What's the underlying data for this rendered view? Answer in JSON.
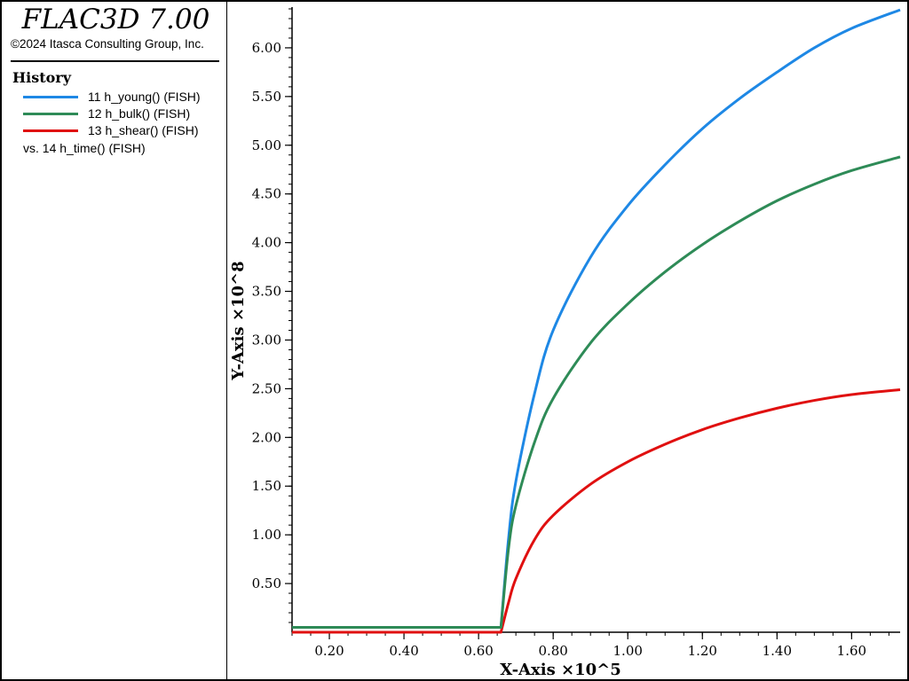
{
  "app": {
    "title": "FLAC3D 7.00",
    "copyright": "©2024 Itasca Consulting Group, Inc."
  },
  "legend": {
    "heading": "History",
    "entries": [
      {
        "label": "11 h_young() (FISH)",
        "color": "#1e88e5"
      },
      {
        "label": "12 h_bulk() (FISH)",
        "color": "#2e8b57"
      },
      {
        "label": "13 h_shear() (FISH)",
        "color": "#e01010"
      }
    ],
    "vs_label": "vs. 14 h_time() (FISH)"
  },
  "chart_data": {
    "type": "line",
    "xlabel": "X-Axis ×10^5",
    "ylabel": "Y-Axis ×10^8",
    "xlim": [
      0.1,
      1.73
    ],
    "ylim": [
      0.0,
      6.4
    ],
    "x_ticks": [
      0.2,
      0.4,
      0.6,
      0.8,
      1.0,
      1.2,
      1.4,
      1.6
    ],
    "x_tick_labels": [
      "0.20",
      "0.40",
      "0.60",
      "0.80",
      "1.00",
      "1.20",
      "1.40",
      "1.60"
    ],
    "y_ticks": [
      0.5,
      1.0,
      1.5,
      2.0,
      2.5,
      3.0,
      3.5,
      4.0,
      4.5,
      5.0,
      5.5,
      6.0
    ],
    "y_tick_labels": [
      "0.50",
      "1.00",
      "1.50",
      "2.00",
      "2.50",
      "3.00",
      "3.50",
      "4.00",
      "4.50",
      "5.00",
      "5.50",
      "6.00"
    ],
    "x": [
      0.1,
      0.66,
      0.68,
      0.7,
      0.75,
      0.8,
      0.9,
      1.0,
      1.1,
      1.2,
      1.3,
      1.4,
      1.5,
      1.6,
      1.73
    ],
    "series": [
      {
        "name": "11 h_young() (FISH)",
        "color": "#1e88e5",
        "values": [
          0.05,
          0.05,
          0.95,
          1.55,
          2.45,
          3.1,
          3.85,
          4.38,
          4.8,
          5.17,
          5.48,
          5.75,
          6.0,
          6.2,
          6.39
        ]
      },
      {
        "name": "12 h_bulk() (FISH)",
        "color": "#2e8b57",
        "values": [
          0.05,
          0.05,
          0.85,
          1.3,
          1.95,
          2.4,
          2.97,
          3.37,
          3.7,
          3.98,
          4.22,
          4.43,
          4.6,
          4.74,
          4.88
        ]
      },
      {
        "name": "13 h_shear() (FISH)",
        "color": "#e01010",
        "values": [
          0.0,
          0.0,
          0.3,
          0.55,
          0.95,
          1.2,
          1.52,
          1.75,
          1.93,
          2.08,
          2.2,
          2.3,
          2.38,
          2.44,
          2.49
        ]
      }
    ],
    "grid": false,
    "legend_position": "left-panel"
  }
}
